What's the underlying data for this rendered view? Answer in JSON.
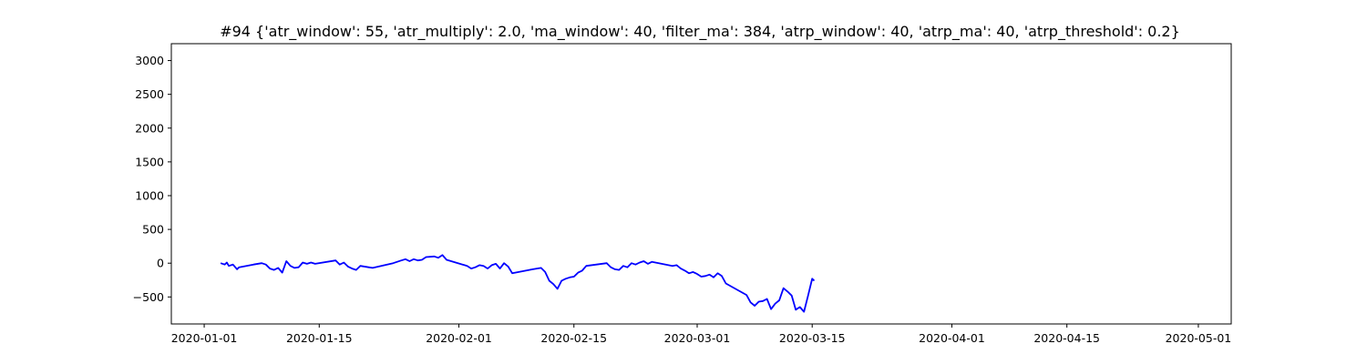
{
  "chart_data": {
    "type": "line",
    "title": "#94 {'atr_window': 55, 'atr_multiply': 2.0, 'ma_window': 40, 'filter_ma': 384, 'atrp_window': 40, 'atrp_ma': 40, 'atrp_threshold': 0.2}",
    "xlabel": "",
    "ylabel": "",
    "x_range": [
      "2019-12-28",
      "2020-05-05"
    ],
    "ylim": [
      -900,
      3250
    ],
    "x_ticks": [
      "2020-01-01",
      "2020-01-15",
      "2020-02-01",
      "2020-02-15",
      "2020-03-01",
      "2020-03-15",
      "2020-04-01",
      "2020-04-15",
      "2020-05-01"
    ],
    "y_ticks": [
      -500,
      0,
      500,
      1000,
      1500,
      2000,
      2500,
      3000
    ],
    "grid": false,
    "legend": "none",
    "series": [
      {
        "color": "#0000ff",
        "points": [
          [
            "2020-01-03",
            0
          ],
          [
            "2020-01-03 12:00",
            -20
          ],
          [
            "2020-01-03 18:00",
            10
          ],
          [
            "2020-01-04",
            -40
          ],
          [
            "2020-01-04 12:00",
            -20
          ],
          [
            "2020-01-05",
            -90
          ],
          [
            "2020-01-05 06:00",
            -60
          ],
          [
            "2020-01-07",
            -20
          ],
          [
            "2020-01-08",
            0
          ],
          [
            "2020-01-08 12:00",
            -20
          ],
          [
            "2020-01-09",
            -80
          ],
          [
            "2020-01-09 12:00",
            -100
          ],
          [
            "2020-01-10",
            -70
          ],
          [
            "2020-01-10 12:00",
            -140
          ],
          [
            "2020-01-11",
            30
          ],
          [
            "2020-01-11 12:00",
            -40
          ],
          [
            "2020-01-12",
            -70
          ],
          [
            "2020-01-12 12:00",
            -60
          ],
          [
            "2020-01-13",
            10
          ],
          [
            "2020-01-13 12:00",
            -10
          ],
          [
            "2020-01-14",
            10
          ],
          [
            "2020-01-14 12:00",
            -10
          ],
          [
            "2020-01-17",
            40
          ],
          [
            "2020-01-17 12:00",
            -20
          ],
          [
            "2020-01-18",
            10
          ],
          [
            "2020-01-18 12:00",
            -50
          ],
          [
            "2020-01-19",
            -80
          ],
          [
            "2020-01-19 12:00",
            -100
          ],
          [
            "2020-01-20",
            -40
          ],
          [
            "2020-01-21",
            -60
          ],
          [
            "2020-01-21 12:00",
            -70
          ],
          [
            "2020-01-24",
            0
          ],
          [
            "2020-01-25",
            40
          ],
          [
            "2020-01-25 12:00",
            60
          ],
          [
            "2020-01-26",
            30
          ],
          [
            "2020-01-26 12:00",
            60
          ],
          [
            "2020-01-27",
            40
          ],
          [
            "2020-01-27 12:00",
            50
          ],
          [
            "2020-01-28",
            90
          ],
          [
            "2020-01-29",
            100
          ],
          [
            "2020-01-29 12:00",
            80
          ],
          [
            "2020-01-30",
            120
          ],
          [
            "2020-01-30 12:00",
            50
          ],
          [
            "2020-02-02",
            -40
          ],
          [
            "2020-02-02 12:00",
            -80
          ],
          [
            "2020-02-03",
            -60
          ],
          [
            "2020-02-03 12:00",
            -30
          ],
          [
            "2020-02-04",
            -40
          ],
          [
            "2020-02-04 12:00",
            -80
          ],
          [
            "2020-02-05",
            -30
          ],
          [
            "2020-02-05 12:00",
            -10
          ],
          [
            "2020-02-06",
            -80
          ],
          [
            "2020-02-06 12:00",
            0
          ],
          [
            "2020-02-07",
            -50
          ],
          [
            "2020-02-07 12:00",
            -150
          ],
          [
            "2020-02-10",
            -90
          ],
          [
            "2020-02-11",
            -70
          ],
          [
            "2020-02-11 12:00",
            -130
          ],
          [
            "2020-02-12",
            -260
          ],
          [
            "2020-02-12 12:00",
            -310
          ],
          [
            "2020-02-13",
            -380
          ],
          [
            "2020-02-13 12:00",
            -260
          ],
          [
            "2020-02-14",
            -230
          ],
          [
            "2020-02-14 12:00",
            -210
          ],
          [
            "2020-02-15",
            -200
          ],
          [
            "2020-02-15 12:00",
            -140
          ],
          [
            "2020-02-16",
            -110
          ],
          [
            "2020-02-16 12:00",
            -40
          ],
          [
            "2020-02-19",
            0
          ],
          [
            "2020-02-19 12:00",
            -60
          ],
          [
            "2020-02-20",
            -90
          ],
          [
            "2020-02-20 12:00",
            -100
          ],
          [
            "2020-02-21",
            -40
          ],
          [
            "2020-02-21 12:00",
            -60
          ],
          [
            "2020-02-22",
            0
          ],
          [
            "2020-02-22 12:00",
            -20
          ],
          [
            "2020-02-23",
            10
          ],
          [
            "2020-02-23 12:00",
            30
          ],
          [
            "2020-02-24",
            -10
          ],
          [
            "2020-02-24 12:00",
            20
          ],
          [
            "2020-02-27",
            -40
          ],
          [
            "2020-02-27 12:00",
            -30
          ],
          [
            "2020-02-28",
            -80
          ],
          [
            "2020-02-28 12:00",
            -110
          ],
          [
            "2020-02-29",
            -150
          ],
          [
            "2020-02-29 12:00",
            -130
          ],
          [
            "2020-03-01",
            -160
          ],
          [
            "2020-03-01 12:00",
            -200
          ],
          [
            "2020-03-02",
            -190
          ],
          [
            "2020-03-02 12:00",
            -170
          ],
          [
            "2020-03-03",
            -210
          ],
          [
            "2020-03-03 12:00",
            -150
          ],
          [
            "2020-03-04",
            -190
          ],
          [
            "2020-03-04 12:00",
            -300
          ],
          [
            "2020-03-07",
            -470
          ],
          [
            "2020-03-07 12:00",
            -580
          ],
          [
            "2020-03-08",
            -630
          ],
          [
            "2020-03-08 12:00",
            -570
          ],
          [
            "2020-03-09",
            -560
          ],
          [
            "2020-03-09 12:00",
            -530
          ],
          [
            "2020-03-10",
            -680
          ],
          [
            "2020-03-10 12:00",
            -600
          ],
          [
            "2020-03-11",
            -550
          ],
          [
            "2020-03-11 12:00",
            -370
          ],
          [
            "2020-03-12",
            -420
          ],
          [
            "2020-03-12 12:00",
            -480
          ],
          [
            "2020-03-13",
            -690
          ],
          [
            "2020-03-13 12:00",
            -650
          ],
          [
            "2020-03-14",
            -720
          ],
          [
            "2020-03-14 12:00",
            -480
          ],
          [
            "2020-03-15",
            -230
          ],
          [
            "2020-03-15 06:00",
            -260
          ]
        ]
      }
    ]
  }
}
